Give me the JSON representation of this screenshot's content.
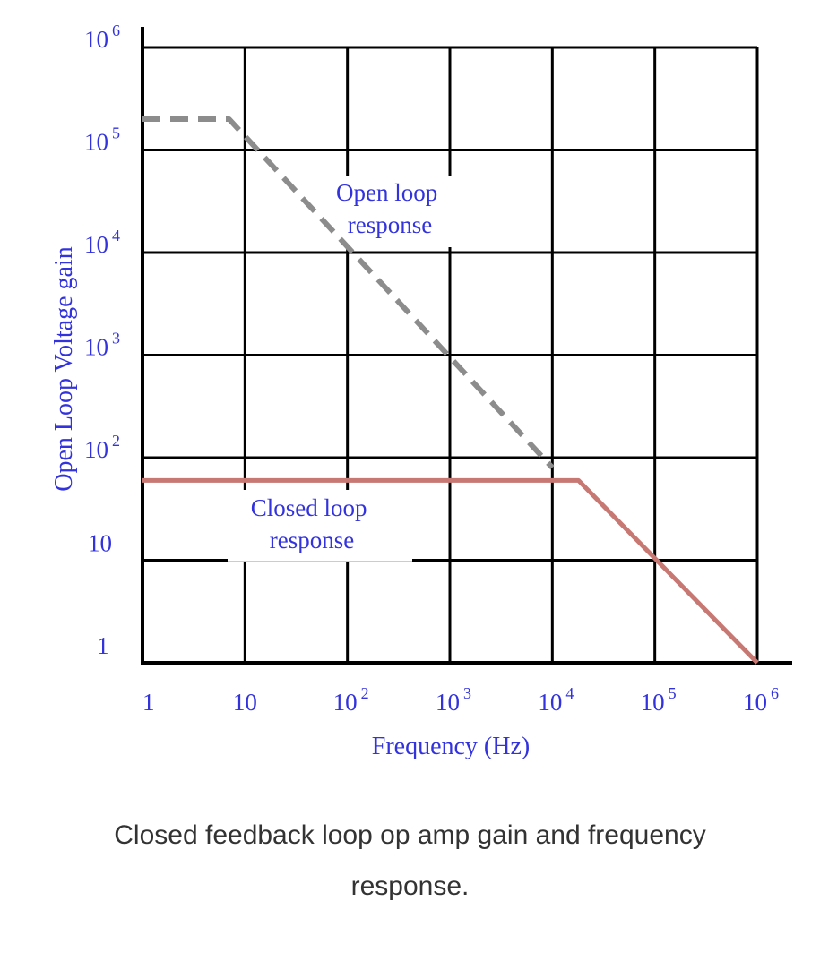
{
  "chart_data": {
    "type": "line",
    "xlabel": "Frequency (Hz)",
    "ylabel": "Open Loop Voltage gain",
    "x_scale": "log",
    "y_scale": "log",
    "xlim": [
      1,
      1000000
    ],
    "ylim": [
      1,
      1000000
    ],
    "grid": true,
    "x_ticks": [
      {
        "base": "1",
        "exp": ""
      },
      {
        "base": "10",
        "exp": ""
      },
      {
        "base": "10",
        "exp": "2"
      },
      {
        "base": "10",
        "exp": "3"
      },
      {
        "base": "10",
        "exp": "4"
      },
      {
        "base": "10",
        "exp": "5"
      },
      {
        "base": "10",
        "exp": "6"
      }
    ],
    "y_ticks": [
      {
        "base": "1",
        "exp": ""
      },
      {
        "base": "10",
        "exp": ""
      },
      {
        "base": "10",
        "exp": "2"
      },
      {
        "base": "10",
        "exp": "3"
      },
      {
        "base": "10",
        "exp": "4"
      },
      {
        "base": "10",
        "exp": "5"
      },
      {
        "base": "10",
        "exp": "6"
      }
    ],
    "series": [
      {
        "style": "dashed",
        "color": "#8c8c8c",
        "points": [
          [
            1,
            200000
          ],
          [
            7,
            200000
          ],
          [
            10000,
            80
          ]
        ]
      },
      {
        "style": "solid",
        "color": "#c87872",
        "points": [
          [
            1,
            60
          ],
          [
            18000,
            60
          ],
          [
            1000000,
            1
          ]
        ]
      }
    ],
    "annotations": [
      {
        "lines": [
          "Open loop",
          "response"
        ]
      },
      {
        "lines": [
          "Closed loop",
          "response"
        ]
      }
    ]
  },
  "caption": {
    "line1": "Closed feedback loop op amp gain and frequency",
    "line2": "response."
  }
}
